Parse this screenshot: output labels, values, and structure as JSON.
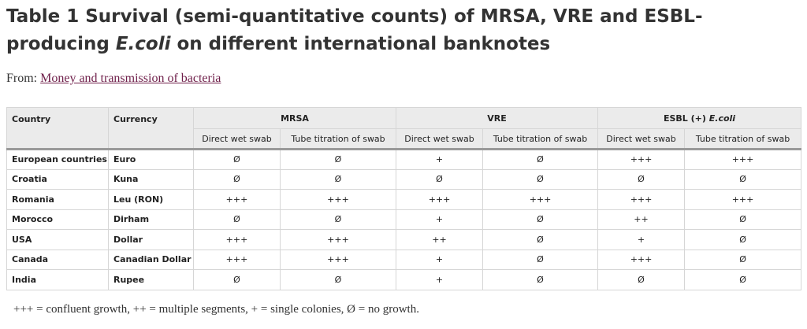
{
  "title": {
    "main": "Table 1 Survival (semi-quantitative counts) of MRSA, VRE and ESBL-producing ",
    "italic": "E.coli",
    "end": " on different international banknotes"
  },
  "from": {
    "label": "From: ",
    "link_text": "Money and transmission of bacteria"
  },
  "table": {
    "headers": {
      "country": "Country",
      "currency": "Currency",
      "groups": [
        "MRSA",
        "VRE",
        "ESBL (+) "
      ],
      "esbl_italic": "E.coli",
      "sub": [
        "Direct wet swab",
        "Tube titration of swab",
        "Direct wet swab",
        "Tube titration of swab",
        "Direct wet swab",
        "Tube titration of swab"
      ]
    },
    "rows": [
      {
        "country": "European countries",
        "currency": "Euro",
        "values": [
          "Ø",
          "Ø",
          "+",
          "Ø",
          "+++",
          "+++"
        ]
      },
      {
        "country": "Croatia",
        "currency": "Kuna",
        "values": [
          "Ø",
          "Ø",
          "Ø",
          "Ø",
          "Ø",
          "Ø"
        ]
      },
      {
        "country": "Romania",
        "currency": "Leu (RON)",
        "values": [
          "+++",
          "+++",
          "+++",
          "+++",
          "+++",
          "+++"
        ]
      },
      {
        "country": "Morocco",
        "currency": "Dirham",
        "values": [
          "Ø",
          "Ø",
          "+",
          "Ø",
          "++",
          "Ø"
        ]
      },
      {
        "country": "USA",
        "currency": "Dollar",
        "values": [
          "+++",
          "+++",
          "++",
          "Ø",
          "+",
          "Ø"
        ]
      },
      {
        "country": "Canada",
        "currency": "Canadian Dollar",
        "values": [
          "+++",
          "+++",
          "+",
          "Ø",
          "+++",
          "Ø"
        ]
      },
      {
        "country": "India",
        "currency": "Rupee",
        "values": [
          "Ø",
          "Ø",
          "+",
          "Ø",
          "Ø",
          "Ø"
        ]
      }
    ]
  },
  "footnote": "+++ = confluent growth, ++ = multiple segments, + = single colonies, Ø = no growth."
}
